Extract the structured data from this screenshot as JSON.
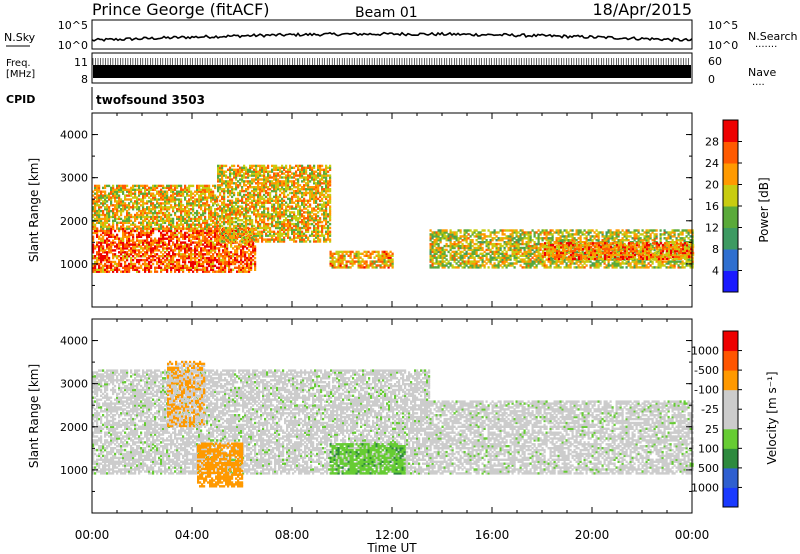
{
  "header": {
    "station": "Prince George (fitACF)",
    "beam": "Beam 01",
    "date": "18/Apr/2015"
  },
  "panels": {
    "nsky_label": "N.Sky",
    "nsearch_label": "N.Search",
    "noise_ticks": [
      "10^5",
      "10^0"
    ],
    "noise_dots": "·······",
    "freq_label_1": "Freq.",
    "freq_label_2": "[MHz]",
    "freq_ticks": [
      "11",
      "8"
    ],
    "nave_label": "Nave",
    "nave_ticks": [
      "60",
      "0"
    ],
    "nave_dots": "····",
    "cpid_label": "CPID",
    "cpid_value": "twofsound 3503"
  },
  "chart_data": [
    {
      "type": "heatmap",
      "name_on_chart": "Power",
      "ylabel": "Slant Range [km]",
      "ylim": [
        0,
        4500
      ],
      "yticks": [
        "1000",
        "2000",
        "3000",
        "4000"
      ],
      "xlim_hours": [
        0,
        24
      ],
      "colorbar": {
        "label": "Power [dB]",
        "ticks": [
          "4",
          "8",
          "12",
          "16",
          "20",
          "24",
          "28"
        ],
        "colors": [
          "#1a1aff",
          "#2f6fd0",
          "#3d9a62",
          "#5aaa3a",
          "#c8cc10",
          "#ff9a00",
          "#ff5a00",
          "#ee0000"
        ]
      },
      "echo_regions": [
        {
          "t": [
            0.0,
            6.5
          ],
          "range_km": [
            800,
            1800
          ],
          "power_db": 26
        },
        {
          "t": [
            0.0,
            5.0
          ],
          "range_km": [
            1800,
            2800
          ],
          "power_db": 20
        },
        {
          "t": [
            5.0,
            9.5
          ],
          "range_km": [
            1500,
            3300
          ],
          "power_db": 20
        },
        {
          "t": [
            9.5,
            12.0
          ],
          "range_km": [
            900,
            1300
          ],
          "power_db": 22
        },
        {
          "t": [
            13.5,
            24.0
          ],
          "range_km": [
            900,
            1800
          ],
          "power_db": 18
        },
        {
          "t": [
            18.0,
            24.0
          ],
          "range_km": [
            1100,
            1500
          ],
          "power_db": 24
        }
      ]
    },
    {
      "type": "heatmap",
      "name_on_chart": "Velocity",
      "ylabel": "Slant Range [km]",
      "ylim": [
        0,
        4500
      ],
      "yticks": [
        "1000",
        "2000",
        "3000",
        "4000"
      ],
      "xlabel": "Time UT",
      "xticks": [
        "00:00",
        "04:00",
        "08:00",
        "12:00",
        "16:00",
        "20:00",
        "00:00"
      ],
      "colorbar": {
        "label": "Velocity [m s⁻¹]",
        "ticks": [
          "1000",
          "500",
          "100",
          "25",
          "-25",
          "-100",
          "-500",
          "-1000"
        ],
        "colors": [
          "#1a3aff",
          "#2f5fd0",
          "#2e8a3e",
          "#66cc33",
          "#cccccc",
          "#cccccc",
          "#ff9900",
          "#ff5500",
          "#ee0000"
        ]
      },
      "echo_regions": [
        {
          "t": [
            0.0,
            13.5
          ],
          "range_km": [
            900,
            3300
          ],
          "velocity_ms": 0
        },
        {
          "t": [
            13.5,
            24.0
          ],
          "range_km": [
            900,
            2600
          ],
          "velocity_ms": 0
        },
        {
          "t": [
            4.2,
            6.0
          ],
          "range_km": [
            600,
            1600
          ],
          "velocity_ms": -400
        },
        {
          "t": [
            9.5,
            12.5
          ],
          "range_km": [
            900,
            1600
          ],
          "velocity_ms": 80
        },
        {
          "t": [
            3.0,
            4.5
          ],
          "range_km": [
            2000,
            3500
          ],
          "velocity_ms": -100
        }
      ]
    }
  ]
}
